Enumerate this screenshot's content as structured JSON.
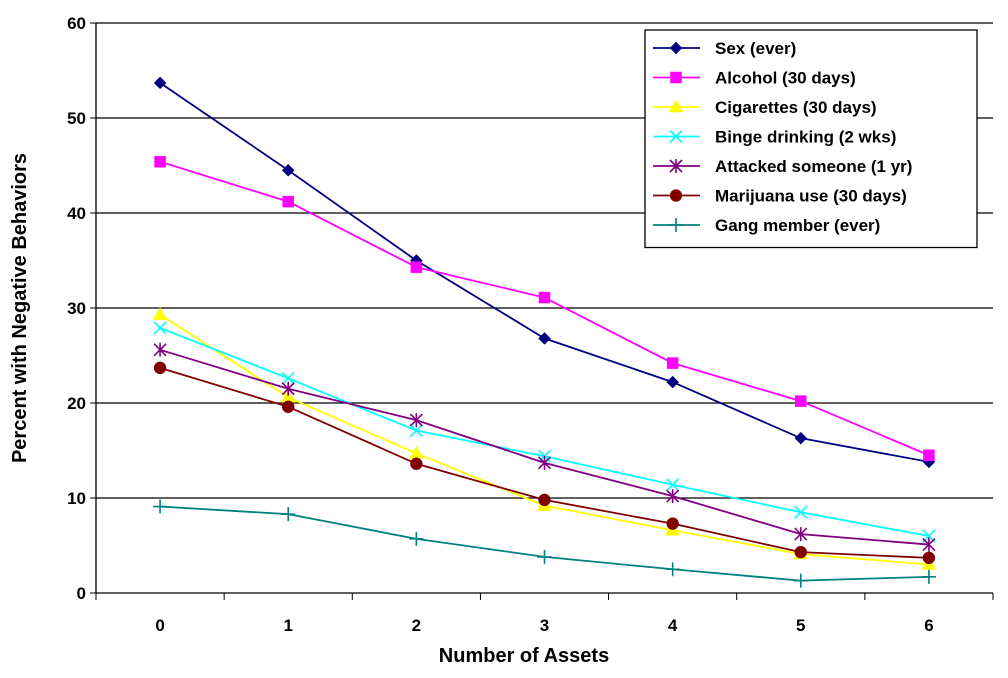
{
  "chart_data": {
    "type": "line",
    "title": "",
    "xlabel": "Number of Assets",
    "ylabel": "Percent with Negative Behaviors",
    "x": [
      0,
      1,
      2,
      3,
      4,
      5,
      6
    ],
    "ylim": [
      0,
      60
    ],
    "yticks": [
      0,
      10,
      20,
      30,
      40,
      50,
      60
    ],
    "grid": "horizontal",
    "legend_position": "top-right",
    "series": [
      {
        "name": "Sex (ever)",
        "color": "#000080",
        "marker": "diamond",
        "values": [
          53.7,
          44.5,
          35.0,
          26.8,
          22.2,
          16.3,
          13.8
        ]
      },
      {
        "name": "Alcohol (30 days)",
        "color": "#ff00ff",
        "marker": "square",
        "values": [
          45.4,
          41.2,
          34.3,
          31.1,
          24.2,
          20.2,
          14.5
        ]
      },
      {
        "name": "Cigarettes (30 days)",
        "color": "#ffff00",
        "marker": "triangle",
        "values": [
          29.3,
          20.6,
          14.7,
          9.2,
          6.6,
          4.1,
          3.0
        ]
      },
      {
        "name": "Binge drinking (2 wks)",
        "color": "#00ffff",
        "marker": "x",
        "values": [
          27.9,
          22.6,
          17.1,
          14.4,
          11.4,
          8.5,
          6.0
        ]
      },
      {
        "name": "Attacked someone (1 yr)",
        "color": "#800080",
        "marker": "star",
        "values": [
          25.6,
          21.5,
          18.2,
          13.7,
          10.2,
          6.2,
          5.1
        ]
      },
      {
        "name": "Marijuana use (30 days)",
        "color": "#800000",
        "marker": "circle",
        "values": [
          23.7,
          19.6,
          13.6,
          9.8,
          7.3,
          4.3,
          3.7
        ]
      },
      {
        "name": "Gang member (ever)",
        "color": "#008080",
        "marker": "plus",
        "values": [
          9.1,
          8.3,
          5.7,
          3.8,
          2.5,
          1.3,
          1.7
        ]
      }
    ]
  }
}
